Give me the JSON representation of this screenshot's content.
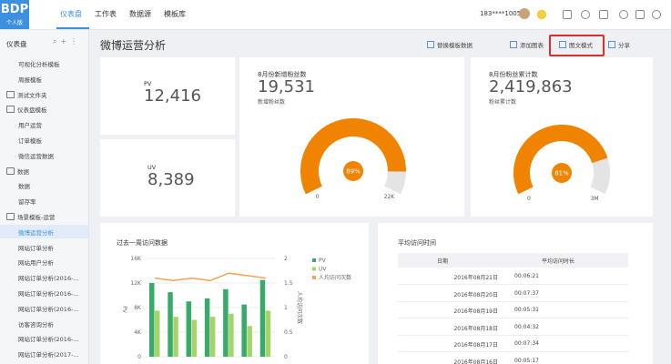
{
  "topbar": {
    "logo": "BDP",
    "logo_sub": "个人版",
    "tabs": [
      "仪表盘",
      "工作表",
      "数据源",
      "模板库"
    ],
    "user": "183****1005"
  },
  "sidebar": {
    "title": "仪表盘",
    "items": [
      {
        "label": "可视化分析模板",
        "kind": "item"
      },
      {
        "label": "周报模板",
        "kind": "item"
      },
      {
        "label": "测试文件夹",
        "kind": "folder"
      },
      {
        "label": "仪表盘模板",
        "kind": "folder"
      },
      {
        "label": "用户运营",
        "kind": "item"
      },
      {
        "label": "订单模板",
        "kind": "item"
      },
      {
        "label": "微信运营数据",
        "kind": "item"
      },
      {
        "label": "数据",
        "kind": "folder"
      },
      {
        "label": "数据",
        "kind": "item"
      },
      {
        "label": "留存率",
        "kind": "item"
      },
      {
        "label": "场景模板-运营",
        "kind": "folder"
      },
      {
        "label": "微博运营分析",
        "kind": "active"
      },
      {
        "label": "网站订单分析",
        "kind": "item"
      },
      {
        "label": "网站用户分析",
        "kind": "item"
      },
      {
        "label": "网站订单分析(2016-...",
        "kind": "item"
      },
      {
        "label": "网站订单分析(2016-...",
        "kind": "item"
      },
      {
        "label": "网站订单分析(2016-...",
        "kind": "item"
      },
      {
        "label": "访客咨询分析",
        "kind": "item"
      },
      {
        "label": "网站订单分析(2016-...",
        "kind": "item"
      },
      {
        "label": "网站订单分析(2017-...",
        "kind": "item"
      }
    ]
  },
  "dashboard": {
    "title": "微博运营分析",
    "toolbar": [
      "替换模板数据",
      "添加图表",
      "图文模式",
      "分享"
    ]
  },
  "kpis": [
    {
      "label": "PV",
      "value": "12,416"
    },
    {
      "label": "UV",
      "value": "8,389"
    }
  ],
  "gauges": [
    {
      "title": "8月份新增粉丝数",
      "value": "19,531",
      "caption": "新增粉丝数",
      "percent": 89,
      "percent_label": "89%",
      "min_label": "0",
      "max_label": "22K",
      "color": "#f08300"
    },
    {
      "title": "8月份粉丝累计数",
      "value": "2,419,863",
      "caption": "粉丝累计数",
      "percent": 81,
      "percent_label": "81%",
      "min_label": "0",
      "max_label": "3M",
      "color": "#f08300"
    }
  ],
  "visits_chart": {
    "title": "过去一周访问数据",
    "y_label": "PV",
    "y2_label": "人均访问次数",
    "ylim": [
      0,
      16000
    ],
    "yticks": [
      {
        "value": 0,
        "label": "0"
      },
      {
        "value": 4000,
        "label": "4K"
      },
      {
        "value": 8000,
        "label": "8K"
      },
      {
        "value": 12000,
        "label": "12K"
      },
      {
        "value": 16000,
        "label": "16K"
      }
    ],
    "y2lim": [
      0,
      2
    ],
    "y2ticks": [
      0,
      0.5,
      1,
      1.5,
      2
    ],
    "series": [
      {
        "name": "PV",
        "color": "#3aaa6a",
        "values": [
          12000,
          10500,
          9000,
          9500,
          11000,
          8500,
          12500
        ]
      },
      {
        "name": "UV",
        "color": "#a5d46a",
        "values": [
          7500,
          6500,
          6000,
          6500,
          7000,
          5000,
          7500
        ]
      },
      {
        "name": "人均访问次数",
        "color": "#f2a55a",
        "axis": "y2",
        "values": [
          1.6,
          1.55,
          1.6,
          1.55,
          1.7,
          1.65,
          1.6
        ]
      }
    ]
  },
  "avg_time_table": {
    "title": "平均访问时间",
    "columns": [
      "日期",
      "平均访问时长"
    ],
    "rows": [
      [
        "2016年08月21日",
        "00:06:21"
      ],
      [
        "2016年08月20日",
        "00:07:37"
      ],
      [
        "2016年08月19日",
        "00:05:31"
      ],
      [
        "2016年08月18日",
        "00:04:32"
      ],
      [
        "2016年08月17日",
        "00:07:34"
      ],
      [
        "2016年08月16日",
        "00:05:17"
      ]
    ]
  }
}
